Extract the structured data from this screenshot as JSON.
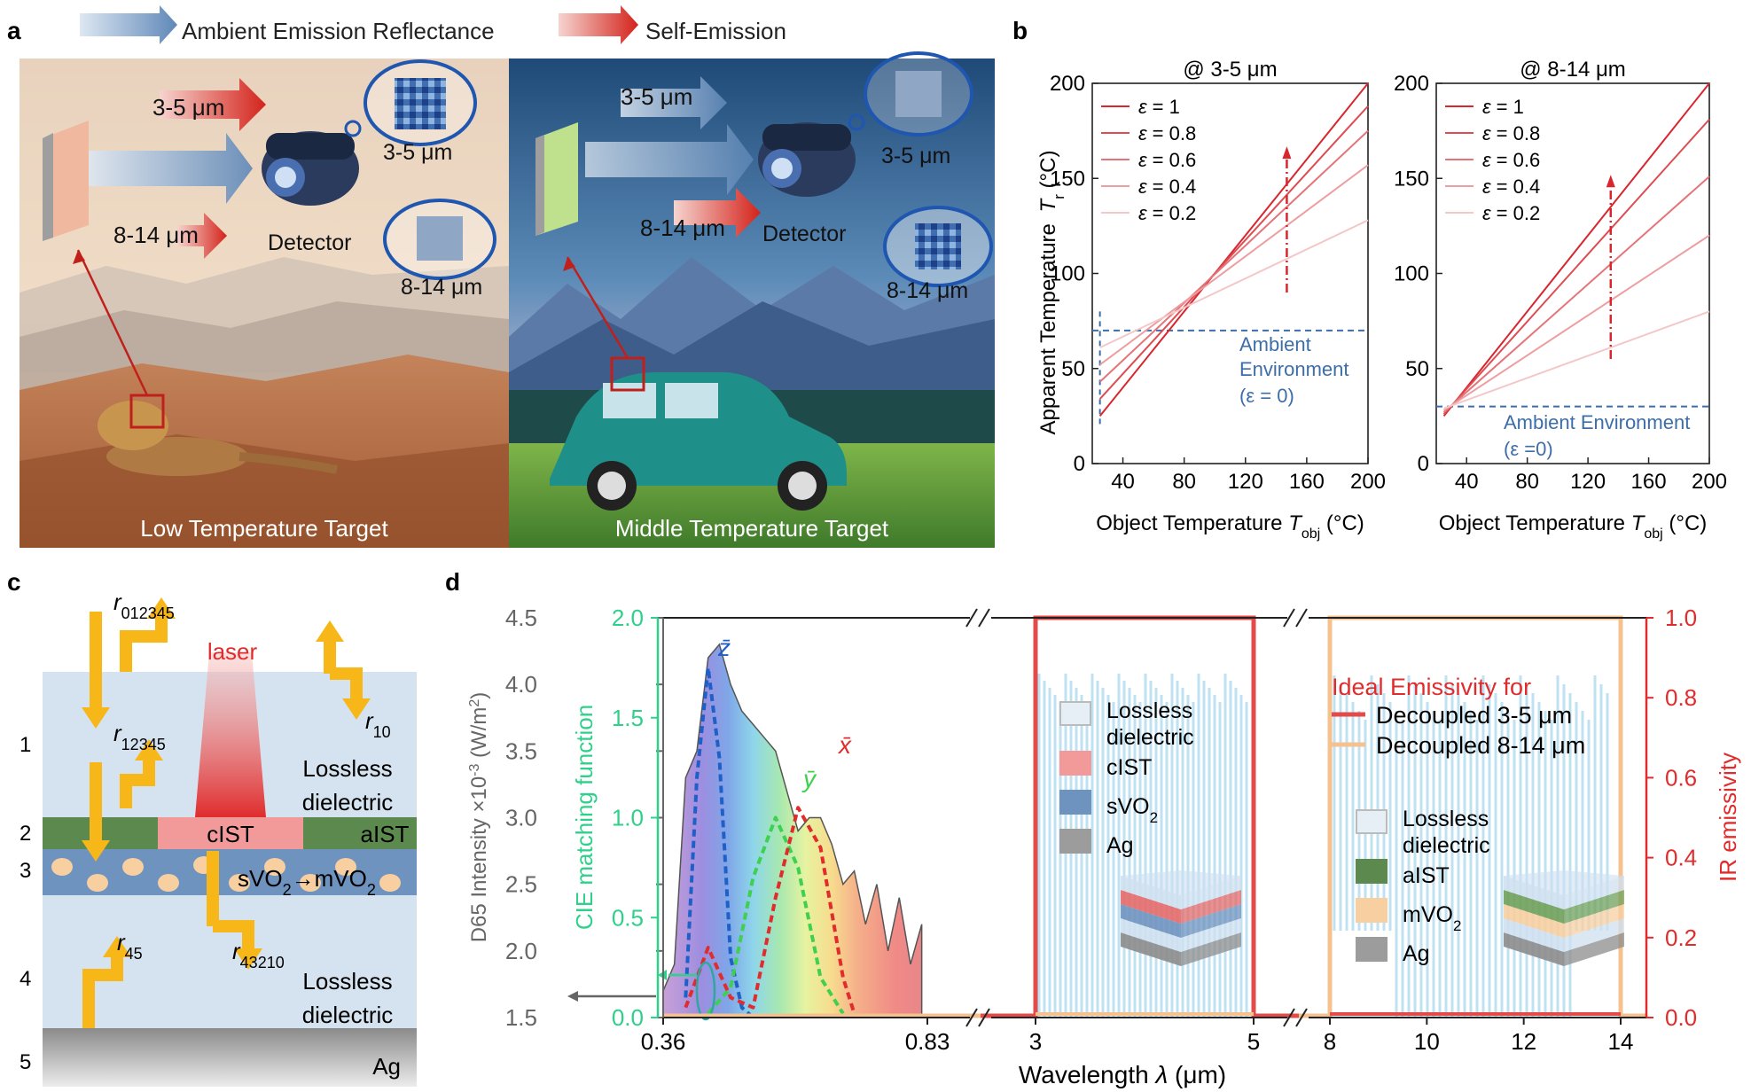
{
  "panel_letters": [
    "a",
    "b",
    "c",
    "d"
  ],
  "panel_a": {
    "legend_reflect": "Ambient Emission Reflectance",
    "legend_self": "Self-Emission",
    "left": {
      "band1": "3-5 μm",
      "band2": "8-14 μm",
      "detector": "Detector",
      "bubble1": "3-5 μm",
      "bubble2": "8-14 μm",
      "caption": "Low Temperature Target"
    },
    "right": {
      "band1": "3-5 μm",
      "band2": "8-14 μm",
      "detector": "Detector",
      "bubble1": "3-5 μm",
      "bubble2": "8-14 μm",
      "caption": "Middle Temperature Target"
    }
  },
  "panel_b": {
    "ylabel": "Apparent Temperature",
    "ylabel_var": "T",
    "ylabel_sub": "r",
    "ylabel_unit": " (°C)",
    "xlabel": "Object Temperature ",
    "xlabel_var": "T",
    "xlabel_sub": "obj",
    "xlabel_unit": " (°C)",
    "eps_symbol": "ε",
    "legend": [
      "= 1",
      "= 0.8",
      "= 0.6",
      "= 0.4",
      "= 0.2"
    ],
    "colors": [
      "#d8262e",
      "#de4c52",
      "#e57478",
      "#ec9ea0",
      "#f3c8c9"
    ],
    "left_ambient": [
      "Ambient",
      "Environment",
      "(ε = 0)"
    ],
    "right_ambient": [
      "Ambient Environment",
      "(ε =0)"
    ]
  },
  "chart_data": [
    {
      "type": "line",
      "title": "@ 3-5 μm",
      "xlim": [
        20,
        200
      ],
      "ylim": [
        0,
        200
      ],
      "xticks": [
        40,
        80,
        120,
        160,
        200
      ],
      "yticks": [
        0,
        50,
        100,
        150,
        200
      ],
      "ambient": 70,
      "series": [
        {
          "name": "ε = 1",
          "x": [
            25,
            200
          ],
          "y": [
            25,
            200
          ]
        },
        {
          "name": "ε = 0.8",
          "x": [
            25,
            200
          ],
          "y": [
            34,
            188
          ]
        },
        {
          "name": "ε = 0.6",
          "x": [
            25,
            200
          ],
          "y": [
            43,
            175
          ]
        },
        {
          "name": "ε = 0.4",
          "x": [
            25,
            200
          ],
          "y": [
            52,
            157
          ]
        },
        {
          "name": "ε = 0.2",
          "x": [
            25,
            200
          ],
          "y": [
            61,
            128
          ]
        }
      ]
    },
    {
      "type": "line",
      "title": "@ 8-14 μm",
      "xlim": [
        20,
        200
      ],
      "ylim": [
        0,
        200
      ],
      "xticks": [
        40,
        80,
        120,
        160,
        200
      ],
      "yticks": [
        0,
        50,
        100,
        150,
        200
      ],
      "ambient": 30,
      "series": [
        {
          "name": "ε = 1",
          "x": [
            25,
            200
          ],
          "y": [
            25,
            200
          ]
        },
        {
          "name": "ε = 0.8",
          "x": [
            25,
            200
          ],
          "y": [
            26,
            181
          ]
        },
        {
          "name": "ε = 0.6",
          "x": [
            25,
            200
          ],
          "y": [
            27,
            151
          ]
        },
        {
          "name": "ε = 0.4",
          "x": [
            25,
            200
          ],
          "y": [
            28,
            120
          ]
        },
        {
          "name": "ε = 0.2",
          "x": [
            25,
            200
          ],
          "y": [
            29,
            80
          ]
        }
      ]
    },
    {
      "type": "area",
      "left_axis": {
        "label": "D65 Intensity ×10",
        "sup": "-3",
        "unit": " (W/m",
        "unit_sup": "2",
        "close": ")",
        "ticks": [
          "1.5",
          "2.0",
          "2.5",
          "3.0",
          "3.5",
          "4.0",
          "4.5"
        ],
        "range": [
          1.5,
          4.5
        ]
      },
      "cie_axis": {
        "label": "CIE matching function",
        "ticks": [
          "0.0",
          "0.5",
          "1.0",
          "1.5",
          "2.0"
        ],
        "range": [
          0,
          2
        ]
      },
      "right_axis": {
        "label": "IR emissivity",
        "ticks": [
          "0.0",
          "0.2",
          "0.4",
          "0.6",
          "0.8",
          "1.0"
        ],
        "range": [
          0,
          1
        ]
      },
      "xlabel": "Wavelength ",
      "xlabel_var": "λ",
      "xlabel_unit": " (μm)",
      "xticks_visible": [
        "0.36",
        "0.83",
        "3",
        "5",
        "8",
        "10",
        "12",
        "14"
      ],
      "d65": {
        "x": [
          0.36,
          0.38,
          0.4,
          0.42,
          0.44,
          0.46,
          0.48,
          0.5,
          0.52,
          0.54,
          0.56,
          0.58,
          0.6,
          0.62,
          0.64,
          0.66,
          0.68,
          0.7,
          0.72,
          0.74,
          0.76,
          0.78,
          0.8,
          0.82
        ],
        "y": [
          1.7,
          1.9,
          3.3,
          3.5,
          4.2,
          4.3,
          4.0,
          3.8,
          3.7,
          3.6,
          3.5,
          3.2,
          2.9,
          3.0,
          3.0,
          2.8,
          2.5,
          2.6,
          2.2,
          2.5,
          2.0,
          2.4,
          1.9,
          2.2
        ]
      },
      "cie_z": {
        "name": "z̄",
        "x": [
          0.4,
          0.42,
          0.44,
          0.46,
          0.48,
          0.5,
          0.52
        ],
        "y": [
          0.1,
          1.2,
          1.75,
          1.3,
          0.3,
          0.05,
          0.0
        ]
      },
      "cie_y": {
        "name": "ȳ",
        "x": [
          0.44,
          0.48,
          0.52,
          0.56,
          0.6,
          0.64,
          0.68
        ],
        "y": [
          0.02,
          0.15,
          0.7,
          1.0,
          0.75,
          0.2,
          0.02
        ]
      },
      "cie_x": {
        "name": "x̄",
        "x": [
          0.4,
          0.44,
          0.48,
          0.52,
          0.56,
          0.6,
          0.64,
          0.68,
          0.7
        ],
        "y": [
          0.05,
          0.35,
          0.1,
          0.05,
          0.6,
          1.05,
          0.85,
          0.2,
          0.02
        ]
      }
    }
  ],
  "panel_c": {
    "r_top": {
      "base": "r",
      "sub": "012345"
    },
    "r_12345": {
      "base": "r",
      "sub": "12345"
    },
    "r_10": {
      "base": "r",
      "sub": "10"
    },
    "r_43210": {
      "base": "r",
      "sub": "43210"
    },
    "r_45": {
      "base": "r",
      "sub": "45"
    },
    "laser": "laser",
    "layer_numbers": [
      "1",
      "2",
      "3",
      "4",
      "5"
    ],
    "layer1": [
      "Lossless",
      "dielectric"
    ],
    "layer4": [
      "Lossless",
      "dielectric"
    ],
    "cist": "cIST",
    "aist": "aIST",
    "svo2": "sVO",
    "svo2_sub": "2",
    "arrow": "→mVO",
    "mvo2_sub": "2",
    "ag": "Ag"
  },
  "panel_d": {
    "title": "Ideal Emissivity for",
    "legend1": "Decoupled 3-5 μm",
    "legend2": "Decoupled 8-14 μm",
    "legend1_color": "#e34b4b",
    "legend2_color": "#f4c18f",
    "stack1": [
      "Lossless",
      "dielectric",
      "cIST",
      "sVO",
      "Ag"
    ],
    "stack1_sub": "2",
    "stack2": [
      "Lossless",
      "dielectric",
      "aIST",
      "mVO",
      "Ag"
    ],
    "stack2_sub": "2"
  }
}
